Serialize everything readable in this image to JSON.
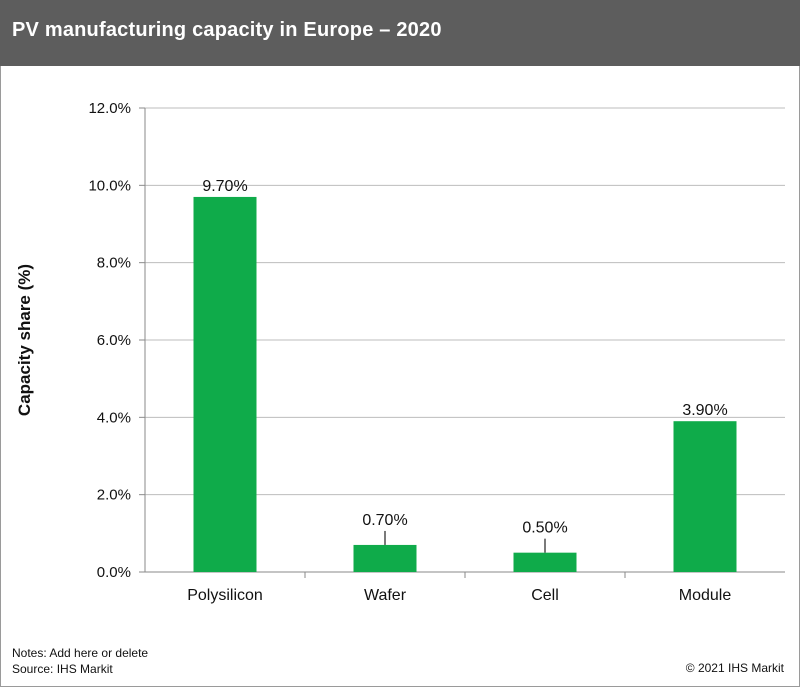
{
  "header": {
    "title": "PV manufacturing capacity in Europe – 2020"
  },
  "chart_data": {
    "type": "bar",
    "title": "PV manufacturing capacity in Europe – 2020",
    "xlabel": "",
    "ylabel": "Capacity share (%)",
    "categories": [
      "Polysilicon",
      "Wafer",
      "Cell",
      "Module"
    ],
    "values": [
      9.7,
      0.7,
      0.5,
      3.9
    ],
    "value_labels": [
      "9.70%",
      "0.70%",
      "0.50%",
      "3.90%"
    ],
    "ylim": [
      0,
      12
    ],
    "yticks": [
      "0.0%",
      "2.0%",
      "4.0%",
      "6.0%",
      "8.0%",
      "10.0%",
      "12.0%"
    ],
    "ytick_values": [
      0,
      2,
      4,
      6,
      8,
      10,
      12
    ],
    "grid": true,
    "legend": "none",
    "bar_color": "#0fab4a"
  },
  "footer": {
    "notes": "Notes: Add here or delete",
    "source": "Source: IHS Markit",
    "copyright": "© 2021 IHS Markit"
  }
}
